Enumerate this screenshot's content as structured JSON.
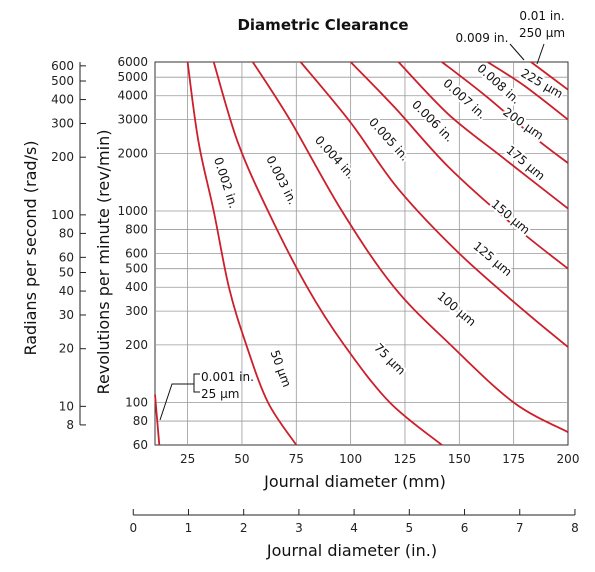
{
  "chart_data": {
    "type": "line",
    "title": "Diametric Clearance",
    "xlabel": "Journal diameter (mm)",
    "xlabel2": "Journal diameter (in.)",
    "ylabel": "Revolutions per minute (rev/min)",
    "ylabel2": "Radians per second (rad/s)",
    "x_scale": "linear",
    "y_scale": "log",
    "xlim": [
      10,
      200
    ],
    "ylim": [
      60,
      6000
    ],
    "x_ticks": [
      25,
      50,
      75,
      100,
      125,
      150,
      175,
      200
    ],
    "x2_ticks": [
      0,
      1,
      2,
      3,
      4,
      5,
      6,
      7,
      8
    ],
    "y_ticks": [
      60,
      80,
      100,
      200,
      300,
      400,
      500,
      600,
      800,
      1000,
      2000,
      3000,
      4000,
      5000,
      6000
    ],
    "y2_ticks": [
      8,
      10,
      20,
      30,
      40,
      50,
      60,
      80,
      100,
      200,
      300,
      400,
      500,
      600
    ],
    "grid": true,
    "legend": "none",
    "line_color": "#cc1f2b",
    "series": [
      {
        "name": "0.001 in.",
        "name_metric": "25 µm",
        "points": [
          [
            10,
            110
          ],
          [
            12,
            60
          ]
        ]
      },
      {
        "name": "0.002 in.",
        "name_metric": "50 µm",
        "points": [
          [
            25,
            6000
          ],
          [
            30,
            2300
          ],
          [
            37,
            1000
          ],
          [
            44,
            400
          ],
          [
            52,
            200
          ],
          [
            62,
            100
          ],
          [
            75,
            60
          ]
        ]
      },
      {
        "name": "0.003 in.",
        "name_metric": "75 µm",
        "points": [
          [
            37,
            6000
          ],
          [
            48,
            2300
          ],
          [
            62,
            1000
          ],
          [
            80,
            400
          ],
          [
            97,
            200
          ],
          [
            118,
            100
          ],
          [
            142,
            60
          ]
        ]
      },
      {
        "name": "0.004 in.",
        "name_metric": "100 µm",
        "points": [
          [
            55,
            6000
          ],
          [
            72,
            3000
          ],
          [
            96,
            1000
          ],
          [
            120,
            400
          ],
          [
            146,
            200
          ],
          [
            175,
            100
          ],
          [
            200,
            70
          ]
        ]
      },
      {
        "name": "0.005 in.",
        "name_metric": "125 µm",
        "points": [
          [
            77,
            6000
          ],
          [
            100,
            2900
          ],
          [
            122,
            1300
          ],
          [
            150,
            600
          ],
          [
            180,
            300
          ],
          [
            200,
            195
          ]
        ]
      },
      {
        "name": "0.006 in.",
        "name_metric": "150 µm",
        "points": [
          [
            100,
            6000
          ],
          [
            120,
            3500
          ],
          [
            145,
            1700
          ],
          [
            175,
            840
          ],
          [
            200,
            500
          ]
        ]
      },
      {
        "name": "0.007 in.",
        "name_metric": "175 µm",
        "points": [
          [
            122,
            6000
          ],
          [
            145,
            3200
          ],
          [
            170,
            1900
          ],
          [
            200,
            1030
          ]
        ]
      },
      {
        "name": "0.008 in.",
        "name_metric": "200 µm",
        "points": [
          [
            142,
            6000
          ],
          [
            162,
            4000
          ],
          [
            185,
            2400
          ],
          [
            200,
            1780
          ]
        ]
      },
      {
        "name": "0.009 in.",
        "name_metric": "225 µm",
        "points": [
          [
            163,
            6000
          ],
          [
            180,
            4500
          ],
          [
            200,
            3000
          ]
        ]
      },
      {
        "name": "0.01 in.",
        "name_metric": "250 µm",
        "points": [
          [
            183,
            6000
          ],
          [
            200,
            4300
          ]
        ]
      }
    ],
    "annotations": [
      {
        "text": "0.002 in."
      },
      {
        "text": "0.003 in."
      },
      {
        "text": "0.004 in."
      },
      {
        "text": "0.005 in."
      },
      {
        "text": "0.006 in."
      },
      {
        "text": "0.007 in."
      },
      {
        "text": "0.008 in."
      },
      {
        "text": "0.009 in."
      },
      {
        "text": "0.01 in."
      },
      {
        "text": "50 µm"
      },
      {
        "text": "75 µm"
      },
      {
        "text": "100 µm"
      },
      {
        "text": "125 µm"
      },
      {
        "text": "150 µm"
      },
      {
        "text": "175 µm"
      },
      {
        "text": "200 µm"
      },
      {
        "text": "225 µm"
      },
      {
        "text": "250 µm"
      },
      {
        "text": "0.001 in."
      },
      {
        "text": "25 µm"
      }
    ]
  }
}
